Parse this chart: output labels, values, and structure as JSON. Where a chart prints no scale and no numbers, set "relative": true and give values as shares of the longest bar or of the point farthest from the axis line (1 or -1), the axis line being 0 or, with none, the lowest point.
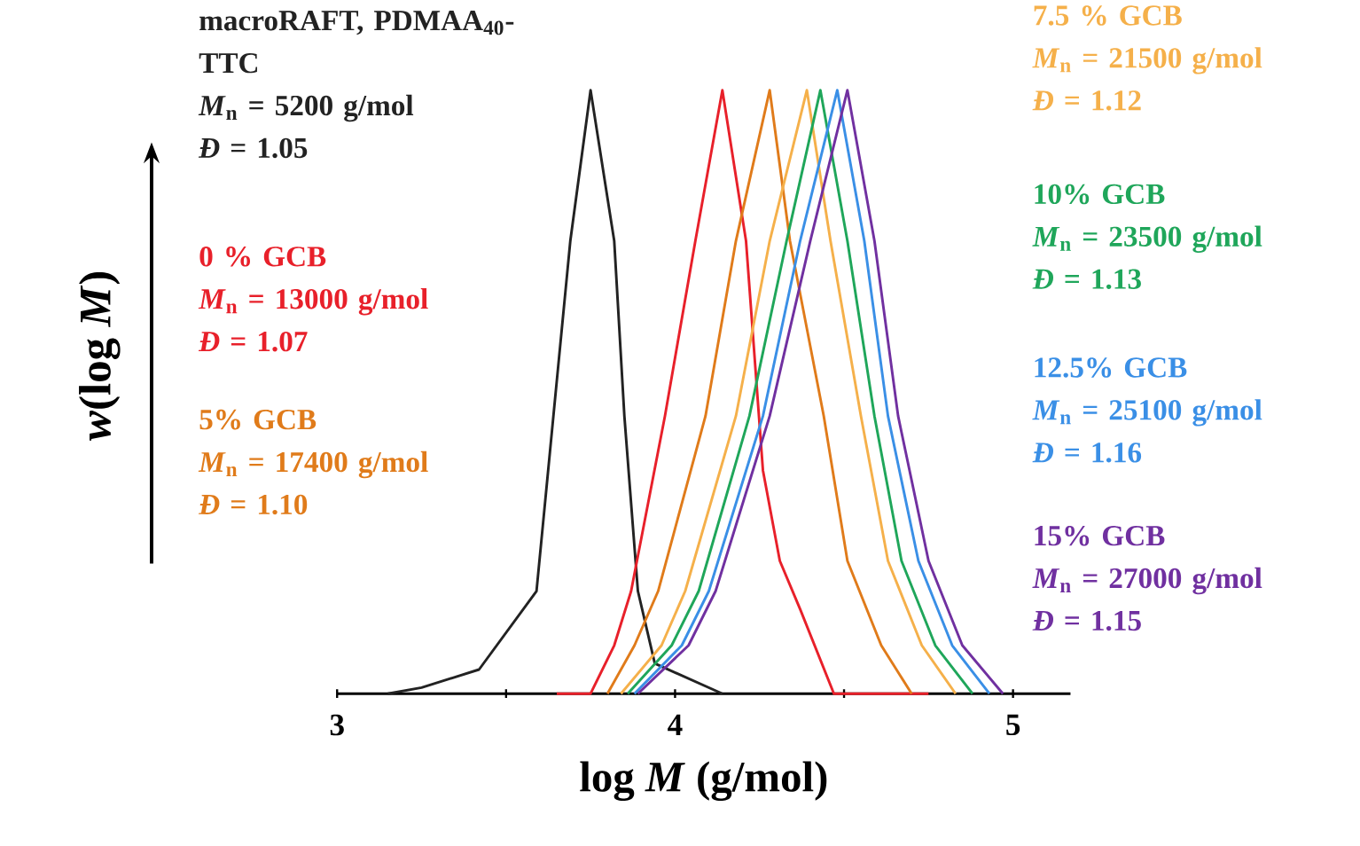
{
  "chart_data": {
    "type": "line",
    "relative": true,
    "xlabel": "log *M* (g/mol)",
    "ylabel": "*w*(log *M*)",
    "xlim": [
      3,
      5.17
    ],
    "xticks": [
      3,
      {
        "value": 3.5,
        "label": null
      },
      4,
      {
        "value": 4.5,
        "label": null
      },
      5
    ],
    "series": [
      {
        "name": "macroRAFT, PDMAA$_{40}$-TTC",
        "color": "#222222",
        "x": [
          3.15,
          3.25,
          3.42,
          3.59,
          3.64,
          3.69,
          3.75,
          3.82,
          3.85,
          3.89,
          3.94,
          4.14
        ],
        "values": [
          0,
          0.01,
          0.04,
          0.17,
          0.46,
          0.75,
          1,
          0.75,
          0.46,
          0.17,
          0.05,
          0
        ]
      },
      {
        "name": "0 % GCB",
        "color": "#e8202a",
        "x": [
          3.65,
          3.75,
          3.82,
          3.87,
          3.97,
          4.06,
          4.14,
          4.21,
          4.26,
          4.31,
          4.37,
          4.47,
          4.75
        ],
        "values": [
          0,
          0,
          0.08,
          0.17,
          0.46,
          0.75,
          1,
          0.75,
          0.37,
          0.22,
          0.14,
          0,
          0
        ]
      },
      {
        "name": "5% GCB",
        "color": "#e07b1a",
        "x": [
          3.8,
          3.88,
          3.95,
          4.09,
          4.18,
          4.28,
          4.34,
          4.44,
          4.51,
          4.61,
          4.7
        ],
        "values": [
          0,
          0.08,
          0.17,
          0.46,
          0.75,
          1,
          0.75,
          0.46,
          0.22,
          0.08,
          0
        ]
      },
      {
        "name": "7.5 % GCB",
        "color": "#f5b04a",
        "x": [
          3.84,
          3.96,
          4.03,
          4.18,
          4.28,
          4.39,
          4.46,
          4.55,
          4.63,
          4.73,
          4.83
        ],
        "values": [
          0,
          0.08,
          0.17,
          0.46,
          0.75,
          1,
          0.75,
          0.46,
          0.22,
          0.08,
          0
        ]
      },
      {
        "name": "10% GCB",
        "color": "#1fa65a",
        "x": [
          3.86,
          3.99,
          4.07,
          4.22,
          4.33,
          4.43,
          4.51,
          4.59,
          4.67,
          4.77,
          4.88
        ],
        "values": [
          0,
          0.08,
          0.17,
          0.46,
          0.75,
          1,
          0.75,
          0.46,
          0.22,
          0.08,
          0
        ]
      },
      {
        "name": "12.5% GCB",
        "color": "#3a8fe6",
        "x": [
          3.88,
          4.02,
          4.1,
          4.26,
          4.37,
          4.48,
          4.56,
          4.63,
          4.72,
          4.82,
          4.93
        ],
        "values": [
          0,
          0.08,
          0.17,
          0.46,
          0.75,
          1,
          0.75,
          0.46,
          0.22,
          0.08,
          0
        ]
      },
      {
        "name": "15% GCB",
        "color": "#7030a0",
        "x": [
          3.89,
          4.04,
          4.12,
          4.28,
          4.4,
          4.51,
          4.59,
          4.66,
          4.75,
          4.85,
          4.97
        ],
        "values": [
          0,
          0.08,
          0.17,
          0.46,
          0.75,
          1,
          0.75,
          0.46,
          0.22,
          0.08,
          0
        ]
      }
    ],
    "annotations": [
      "*M*$_{n}$ = 5200 g/mol",
      "*Đ* = 1.05",
      "*M*$_{n}$ = 13000 g/mol",
      "*Đ* = 1.07",
      "*M*$_{n}$ = 17400 g/mol",
      "*Đ* = 1.10",
      "*M*$_{n}$ = 21500 g/mol",
      "*Đ* = 1.12",
      "*M*$_{n}$ = 23500 g/mol",
      "*Đ* = 1.13",
      "*M*$_{n}$ = 25100 g/mol",
      "*Đ* = 1.16",
      "*M*$_{n}$ = 27000 g/mol",
      "*Đ* = 1.15"
    ]
  }
}
